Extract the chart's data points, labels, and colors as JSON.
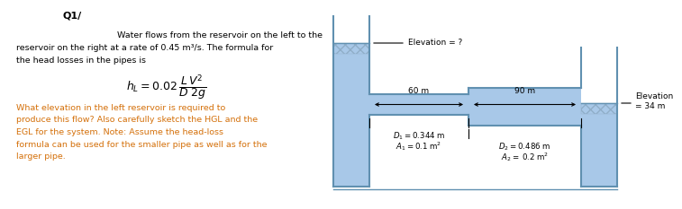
{
  "title": "Q1/",
  "bg_color": "#ffffff",
  "text_color": "#000000",
  "orange_color": "#d4700a",
  "water_fill": "#a8c8e8",
  "water_fill_dark": "#90b8dc",
  "pipe_border": "#6090b0",
  "hatch_color": "#90aec8",
  "elevation_label_right": "Elevation\n= 34 m",
  "elevation_label_left": "Elevation = ?",
  "pipe1_label_d": "$D_1 = 0.344$ m",
  "pipe1_label_a": "$A_1 = 0.1$ m$^2$",
  "pipe2_label_d": "$D_2 = 0.486$ m",
  "pipe2_label_a": "$A_2 =\\;0.2$ m$^2$",
  "dim1": "60 m",
  "dim2": "90 m",
  "text_line1": "Water flows from the reservoir on the left to the",
  "text_line2": "reservoir on the right at a rate of 0.45 m³/s. The formula for",
  "text_line3": "the head losses in the pipes is",
  "question_line1": "What elevation in the left reservoir is required to",
  "question_line2": "produce this flow? Also carefully sketch the HGL and the",
  "question_line3": "EGL for the system. Note: Assume the head-loss",
  "question_line4": "formula can be used for the smaller pipe as well as for the",
  "question_line5": "larger pipe."
}
